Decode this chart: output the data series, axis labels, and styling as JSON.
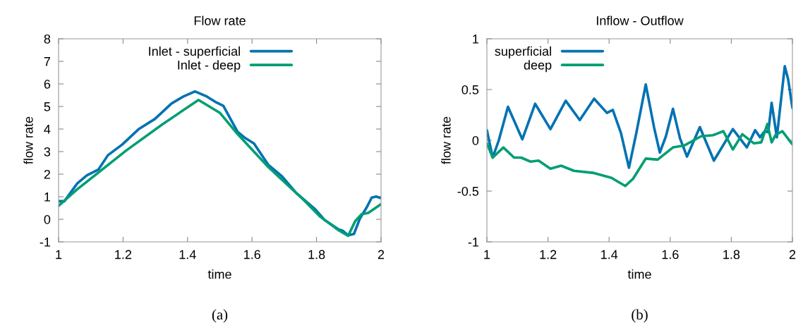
{
  "chart_data": [
    {
      "type": "line",
      "title": "Flow rate",
      "xlabel": "time",
      "ylabel": "flow rate",
      "annotations": [
        "(a)"
      ],
      "xlim": [
        1,
        2
      ],
      "xticks": [
        1,
        1.2,
        1.4,
        1.6,
        1.8,
        2
      ],
      "ylim": [
        -1,
        8
      ],
      "yticks": [
        -1,
        0,
        1,
        2,
        3,
        4,
        5,
        6,
        7,
        8
      ],
      "grid": false,
      "legend": "top",
      "line_style": "solid",
      "marker": "none",
      "series": [
        {
          "name": "Inlet - superficial",
          "color": "#0072b2",
          "x": [
            1,
            1.018,
            1.058,
            1.088,
            1.124,
            1.153,
            1.197,
            1.248,
            1.299,
            1.35,
            1.387,
            1.423,
            1.46,
            1.489,
            1.511,
            1.555,
            1.577,
            1.606,
            1.65,
            1.693,
            1.737,
            1.796,
            1.825,
            1.869,
            1.88,
            1.898,
            1.916,
            1.934,
            1.956,
            1.971,
            1.985,
            2
          ],
          "values": [
            0.8,
            0.8,
            1.59,
            1.95,
            2.21,
            2.84,
            3.31,
            3.99,
            4.45,
            5.13,
            5.44,
            5.67,
            5.44,
            5.18,
            5.03,
            3.88,
            3.62,
            3.36,
            2.42,
            1.9,
            1.17,
            0.44,
            -0.03,
            -0.45,
            -0.5,
            -0.71,
            -0.65,
            0.02,
            0.54,
            0.96,
            1.01,
            0.94
          ]
        },
        {
          "name": "Inlet - deep",
          "color": "#009e73",
          "x": [
            1,
            1.058,
            1.21,
            1.32,
            1.434,
            1.5,
            1.555,
            1.65,
            1.76,
            1.81,
            1.87,
            1.898,
            1.92,
            1.94,
            1.96,
            2
          ],
          "values": [
            0.6,
            1.33,
            3.05,
            4.19,
            5.29,
            4.72,
            3.78,
            2.32,
            0.86,
            0.13,
            -0.5,
            -0.73,
            -0.08,
            0.23,
            0.28,
            0.67
          ]
        }
      ]
    },
    {
      "type": "line",
      "title": "Inflow - Outflow",
      "xlabel": "time",
      "ylabel": "flow rate",
      "annotations": [
        "(b)"
      ],
      "xlim": [
        1,
        2
      ],
      "xticks": [
        1,
        1.2,
        1.4,
        1.6,
        1.8,
        2
      ],
      "ylim": [
        -1,
        1
      ],
      "yticks": [
        -1,
        -0.5,
        0,
        0.5,
        1
      ],
      "grid": false,
      "legend": "top left",
      "line_style": "solid",
      "marker": "none",
      "series": [
        {
          "name": "superficial",
          "color": "#0072b2",
          "x": [
            1,
            1.019,
            1.039,
            1.069,
            1.116,
            1.158,
            1.208,
            1.258,
            1.304,
            1.351,
            1.393,
            1.412,
            1.439,
            1.465,
            1.489,
            1.52,
            1.547,
            1.566,
            1.586,
            1.609,
            1.632,
            1.655,
            1.697,
            1.743,
            1.805,
            1.851,
            1.878,
            1.894,
            1.909,
            1.921,
            1.932,
            1.949,
            1.975,
            1.986,
            2
          ],
          "values": [
            0.1,
            -0.17,
            0,
            0.33,
            0.01,
            0.36,
            0.11,
            0.39,
            0.2,
            0.41,
            0.27,
            0.3,
            0.07,
            -0.27,
            0.07,
            0.55,
            0.13,
            -0.12,
            0.04,
            0.31,
            0.02,
            -0.16,
            0.13,
            -0.2,
            0.11,
            -0.07,
            0.1,
            0.03,
            0.09,
            0.08,
            0.37,
            0.03,
            0.73,
            0.6,
            0.32
          ]
        },
        {
          "name": "deep",
          "color": "#009e73",
          "x": [
            1,
            1.019,
            1.054,
            1.089,
            1.112,
            1.143,
            1.169,
            1.208,
            1.243,
            1.285,
            1.347,
            1.408,
            1.453,
            1.478,
            1.52,
            1.559,
            1.609,
            1.647,
            1.701,
            1.74,
            1.774,
            1.805,
            1.836,
            1.874,
            1.898,
            1.918,
            1.932,
            1.944,
            1.967,
            2
          ],
          "values": [
            -0.03,
            -0.17,
            -0.07,
            -0.17,
            -0.17,
            -0.21,
            -0.2,
            -0.28,
            -0.25,
            -0.3,
            -0.32,
            -0.37,
            -0.45,
            -0.38,
            -0.18,
            -0.19,
            -0.07,
            -0.05,
            0.04,
            0.05,
            0.09,
            -0.09,
            0.06,
            -0.03,
            -0.02,
            0.16,
            -0.02,
            0.05,
            0.09,
            -0.04
          ]
        }
      ]
    }
  ]
}
